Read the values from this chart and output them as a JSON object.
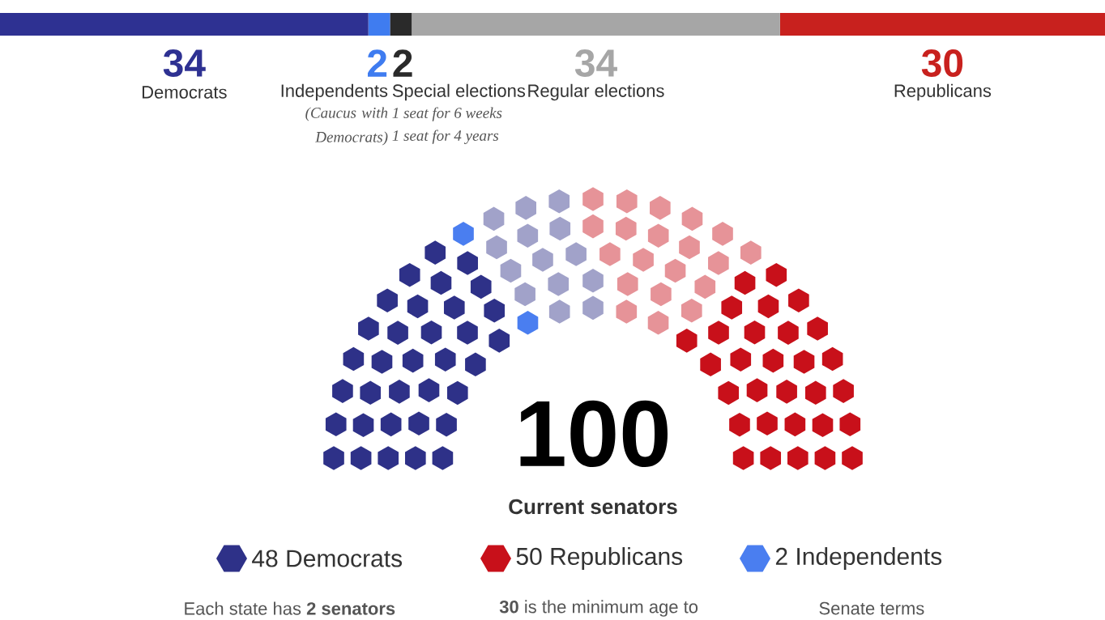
{
  "chart_data": [
    {
      "type": "bar",
      "orientation": "horizontal",
      "stacked": true,
      "categories": [
        null
      ],
      "data_labels": true,
      "series": [
        {
          "name": "Democrats",
          "color": "#2e3192",
          "values": [
            34
          ]
        },
        {
          "name": "Independents",
          "color": "#3f7cf0",
          "values": [
            2
          ]
        },
        {
          "name": "Special elections",
          "color": "#2a2a2a",
          "values": [
            2
          ]
        },
        {
          "name": "Regular elections",
          "color": "#a6a6a6",
          "values": [
            34
          ]
        },
        {
          "name": "Republicans",
          "color": "#c8211e",
          "values": [
            30
          ]
        }
      ],
      "annotations": [
        "(Caucus with Democrats)",
        "1 seat for 6 weeks",
        "1 seat for 4 years"
      ]
    },
    {
      "type": "other",
      "title": "100",
      "subtitle": "Current senators",
      "categories": [
        "Democrats",
        "Republicans",
        "Independents"
      ],
      "values": [
        48,
        50,
        2
      ],
      "value_labels": [
        "48",
        "50",
        "2"
      ],
      "colors": [
        "#2e3188",
        "#c8101a",
        "#4a7ef0"
      ],
      "annotations": [
        "Each state has **2 senators**",
        "**30** is the minimum age to",
        "Senate terms"
      ]
    }
  ]
}
